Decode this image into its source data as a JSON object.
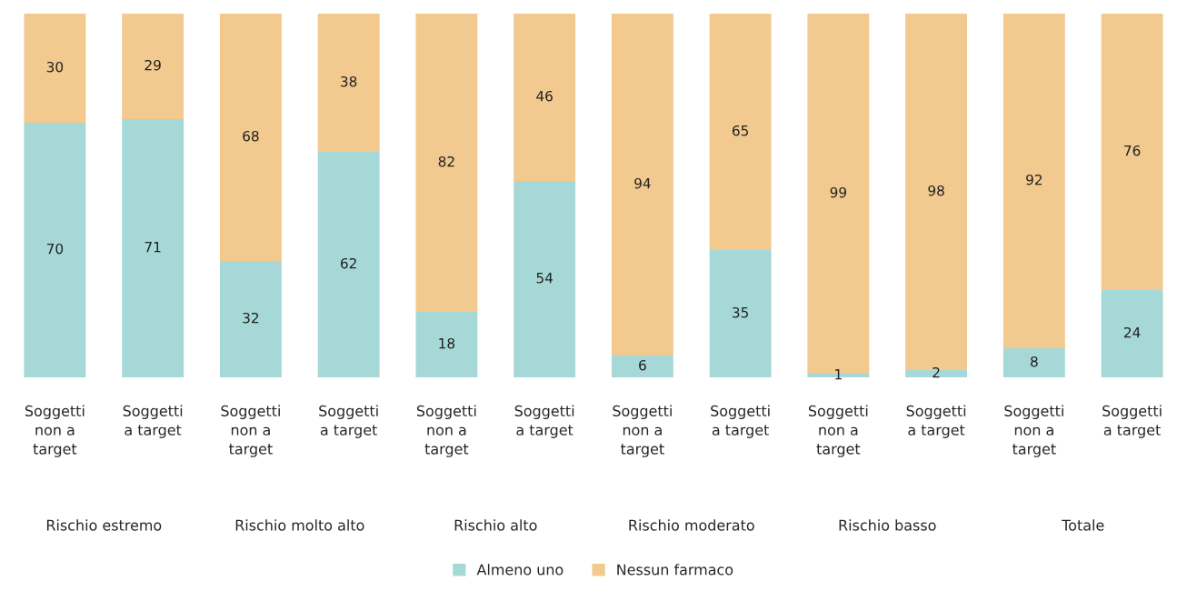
{
  "chart_data": {
    "type": "bar",
    "stacked": true,
    "data_labels": true,
    "legend": "bottom",
    "categories": [
      "Soggetti\nnon a\ntarget",
      "Soggetti\na target",
      "Soggetti\nnon a\ntarget",
      "Soggetti\na target",
      "Soggetti\nnon a\ntarget",
      "Soggetti\na target",
      "Soggetti\nnon a\ntarget",
      "Soggetti\na target",
      "Soggetti\nnon a\ntarget",
      "Soggetti\na target",
      "Soggetti\nnon a\ntarget",
      "Soggetti\na target"
    ],
    "series": [
      {
        "name": "Almeno uno",
        "color": "#a5d8d6",
        "values": [
          70,
          71,
          32,
          62,
          18,
          54,
          6,
          35,
          1,
          2,
          8,
          24
        ]
      },
      {
        "name": "Nessun farmaco",
        "color": "#f2c98e",
        "values": [
          30,
          29,
          68,
          38,
          82,
          46,
          94,
          65,
          99,
          98,
          92,
          76
        ]
      }
    ],
    "annotations": [
      "Rischio estremo",
      "Rischio molto alto",
      "Rischio alto",
      "Rischio moderato",
      "Rischio basso",
      "Totale"
    ]
  }
}
